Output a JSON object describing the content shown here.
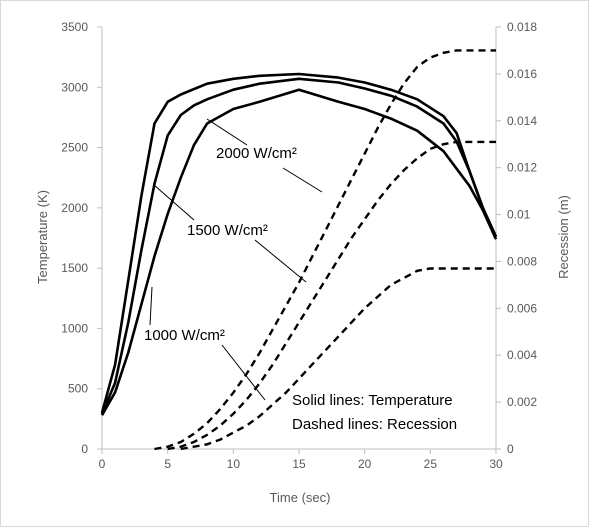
{
  "chart_data": {
    "type": "line",
    "xlabel": "Time (sec)",
    "ylabel": "Temperature (K)",
    "y2label": "Recession (m)",
    "xlim": [
      0,
      30
    ],
    "ylim": [
      0,
      3500
    ],
    "y2lim": [
      0,
      0.018
    ],
    "xticks": [
      "0",
      "5",
      "10",
      "15",
      "20",
      "25",
      "30"
    ],
    "yticks": [
      "0",
      "500",
      "1000",
      "1500",
      "2000",
      "2500",
      "3000",
      "3500"
    ],
    "y2ticks": [
      "0",
      "0.002",
      "0.004",
      "0.006",
      "0.008",
      "0.01",
      "0.012",
      "0.014",
      "0.016",
      "0.018"
    ],
    "grid": false,
    "legend": "none",
    "annotations": {
      "a2000": "2000 W/cm²",
      "a1500": "1500 W/cm²",
      "a1000": "1000 W/cm²",
      "solid": "Solid lines: Temperature",
      "dashed": "Dashed lines: Recession"
    },
    "temperature_series": [
      {
        "flux": 2000,
        "x": [
          0,
          1,
          2,
          3,
          4,
          5,
          6,
          8,
          10,
          12,
          15,
          18,
          20,
          22,
          24,
          26,
          27,
          28,
          29,
          30
        ],
        "y": [
          300,
          700,
          1400,
          2100,
          2700,
          2880,
          2940,
          3030,
          3070,
          3095,
          3110,
          3080,
          3040,
          2980,
          2900,
          2760,
          2620,
          2300,
          2000,
          1760
        ]
      },
      {
        "flux": 1500,
        "x": [
          0,
          1,
          2,
          3,
          4,
          5,
          6,
          7,
          8,
          10,
          12,
          15,
          18,
          20,
          22,
          24,
          26,
          27,
          28,
          29,
          30
        ],
        "y": [
          290,
          550,
          1050,
          1650,
          2200,
          2600,
          2770,
          2850,
          2900,
          2980,
          3030,
          3070,
          3040,
          2990,
          2930,
          2840,
          2700,
          2550,
          2300,
          2000,
          1760
        ]
      },
      {
        "flux": 1000,
        "x": [
          0,
          1,
          2,
          3,
          4,
          5,
          6,
          7,
          8,
          10,
          12,
          15,
          18,
          20,
          22,
          24,
          26,
          28,
          29,
          30
        ],
        "y": [
          280,
          470,
          800,
          1200,
          1600,
          1950,
          2250,
          2520,
          2700,
          2820,
          2880,
          2980,
          2880,
          2820,
          2740,
          2640,
          2470,
          2180,
          1980,
          1740
        ]
      }
    ],
    "recession_series": [
      {
        "flux": 2000,
        "x": [
          4,
          5,
          6,
          7,
          8,
          9,
          10,
          11,
          12,
          13,
          14,
          15,
          16,
          17,
          18,
          19,
          20,
          21,
          22,
          23,
          24,
          25,
          26,
          27,
          28,
          29,
          30
        ],
        "y": [
          0,
          0.0001,
          0.0003,
          0.00065,
          0.0011,
          0.0017,
          0.0024,
          0.0032,
          0.0041,
          0.0051,
          0.0061,
          0.0071,
          0.0082,
          0.0093,
          0.0104,
          0.0115,
          0.0126,
          0.0137,
          0.0147,
          0.0156,
          0.0163,
          0.0167,
          0.0169,
          0.017,
          0.017,
          0.017,
          0.017
        ]
      },
      {
        "flux": 1500,
        "x": [
          5,
          6,
          7,
          8,
          9,
          10,
          11,
          12,
          13,
          14,
          15,
          16,
          17,
          18,
          19,
          20,
          21,
          22,
          23,
          24,
          25,
          26,
          27,
          28,
          29,
          30
        ],
        "y": [
          0,
          0.0001,
          0.0003,
          0.0006,
          0.001,
          0.0015,
          0.0021,
          0.0028,
          0.0036,
          0.0045,
          0.0054,
          0.0063,
          0.0072,
          0.0081,
          0.009,
          0.0098,
          0.0106,
          0.0113,
          0.0119,
          0.0124,
          0.0128,
          0.013,
          0.0131,
          0.0131,
          0.0131,
          0.0131
        ]
      },
      {
        "flux": 1000,
        "x": [
          6,
          7,
          8,
          9,
          10,
          11,
          12,
          13,
          14,
          15,
          16,
          17,
          18,
          19,
          20,
          21,
          22,
          23,
          24,
          25,
          26,
          27,
          28,
          29,
          30
        ],
        "y": [
          0,
          0.0001,
          0.0002,
          0.0004,
          0.0007,
          0.001,
          0.0014,
          0.0019,
          0.0024,
          0.003,
          0.0036,
          0.0042,
          0.0048,
          0.0054,
          0.006,
          0.0065,
          0.007,
          0.0073,
          0.0076,
          0.0077,
          0.0077,
          0.0077,
          0.0077,
          0.0077,
          0.0077
        ]
      }
    ]
  }
}
